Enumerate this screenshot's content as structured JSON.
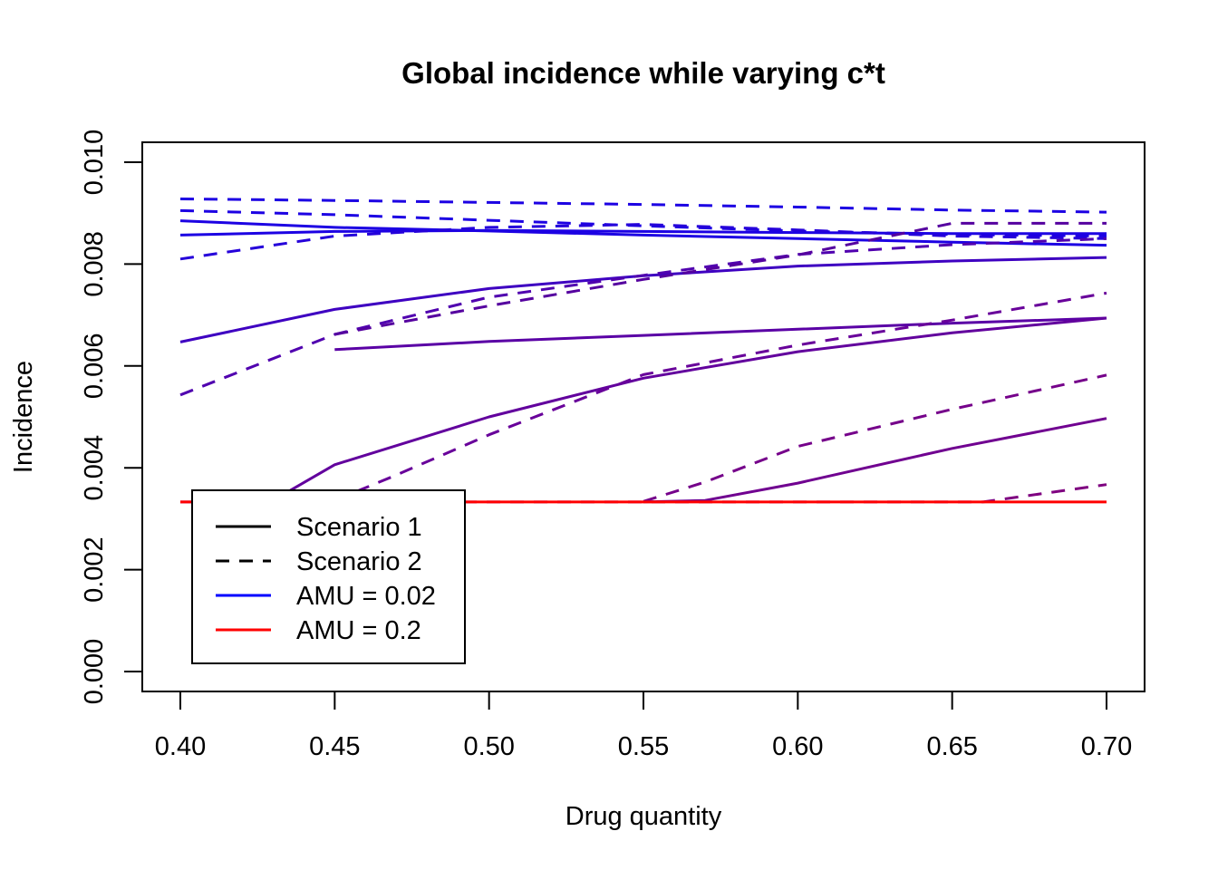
{
  "chart_data": {
    "type": "line",
    "title": "Global incidence while varying c*t",
    "xlabel": "Drug quantity",
    "ylabel": "Incidence",
    "xlim": [
      0.4,
      0.7
    ],
    "ylim": [
      0.0,
      0.01
    ],
    "x_ticks": [
      "0.40",
      "0.45",
      "0.50",
      "0.55",
      "0.60",
      "0.65",
      "0.70"
    ],
    "y_ticks": [
      "0.000",
      "0.002",
      "0.004",
      "0.006",
      "0.008",
      "0.010"
    ],
    "grid": false,
    "legend": {
      "placement": "bottom-left",
      "entries": [
        {
          "label": "Scenario 1",
          "color": "#000000",
          "dash": false
        },
        {
          "label": "Scenario 2",
          "color": "#000000",
          "dash": true
        },
        {
          "label": "AMU = 0.02",
          "color": "#0000ff",
          "dash": false
        },
        {
          "label": "AMU = 0.2",
          "color": "#ff0000",
          "dash": false
        }
      ]
    },
    "series": [
      {
        "color": "#1c00e3",
        "dash": false,
        "x": [
          0.4,
          0.45,
          0.5,
          0.55,
          0.6,
          0.65,
          0.7
        ],
        "y": [
          0.00885,
          0.00872,
          0.00865,
          0.00857,
          0.0085,
          0.00843,
          0.00837
        ]
      },
      {
        "color": "#1c00e3",
        "dash": false,
        "x": [
          0.4,
          0.45,
          0.5,
          0.55,
          0.6,
          0.65,
          0.7
        ],
        "y": [
          0.00857,
          0.00864,
          0.00866,
          0.00864,
          0.00862,
          0.0086,
          0.0086
        ]
      },
      {
        "color": "#1c00e3",
        "dash": true,
        "x": [
          0.4,
          0.45,
          0.5,
          0.55,
          0.6,
          0.65,
          0.7
        ],
        "y": [
          0.00928,
          0.00925,
          0.00921,
          0.00917,
          0.00912,
          0.00906,
          0.00902
        ]
      },
      {
        "color": "#1c00e3",
        "dash": true,
        "x": [
          0.4,
          0.45,
          0.5,
          0.55,
          0.6,
          0.65,
          0.7
        ],
        "y": [
          0.00905,
          0.00897,
          0.00886,
          0.00875,
          0.00865,
          0.00858,
          0.00855
        ]
      },
      {
        "color": "#2500da",
        "dash": true,
        "x": [
          0.4,
          0.45,
          0.5,
          0.55,
          0.6,
          0.65,
          0.7
        ],
        "y": [
          0.0081,
          0.00855,
          0.00872,
          0.00878,
          0.00867,
          0.00855,
          0.0085
        ]
      },
      {
        "color": "#3e00c1",
        "dash": false,
        "x": [
          0.4,
          0.45,
          0.5,
          0.55,
          0.6,
          0.65,
          0.7
        ],
        "y": [
          0.00647,
          0.00711,
          0.00752,
          0.00777,
          0.00796,
          0.00806,
          0.00813
        ]
      },
      {
        "color": "#5000af",
        "dash": true,
        "x": [
          0.4,
          0.45,
          0.5,
          0.55,
          0.6,
          0.65,
          0.7
        ],
        "y": [
          0.00543,
          0.00662,
          0.00735,
          0.00778,
          0.00819,
          0.00838,
          0.0085
        ]
      },
      {
        "color": "#55009f",
        "dash": true,
        "x": [
          0.4,
          0.45,
          0.5,
          0.55,
          0.6,
          0.65,
          0.7
        ],
        "y": [
          null,
          0.00662,
          0.00718,
          0.0077,
          0.00818,
          0.0088,
          0.0088
        ]
      },
      {
        "color": "#5a00a5",
        "dash": false,
        "x": [
          0.4,
          0.45,
          0.5,
          0.55,
          0.6,
          0.65,
          0.7
        ],
        "y": [
          null,
          0.00632,
          0.00648,
          0.0066,
          0.00672,
          0.00684,
          0.00694
        ]
      },
      {
        "color": "#62009d",
        "dash": false,
        "x": [
          0.43,
          0.45,
          0.5,
          0.55,
          0.6,
          0.65,
          0.7
        ],
        "y": [
          0.00336,
          0.00406,
          0.005,
          0.00576,
          0.00628,
          0.00665,
          0.00694
        ]
      },
      {
        "color": "#68009a",
        "dash": true,
        "x": [
          0.45,
          0.47,
          0.5,
          0.55,
          0.6,
          0.65,
          0.7
        ],
        "y": [
          0.00336,
          0.00386,
          0.00465,
          0.00583,
          0.00641,
          0.0069,
          0.00743
        ]
      },
      {
        "color": "#700090",
        "dash": false,
        "x": [
          0.55,
          0.57,
          0.6,
          0.65,
          0.7
        ],
        "y": [
          0.00333,
          0.00336,
          0.0037,
          0.00438,
          0.00497
        ]
      },
      {
        "color": "#75008a",
        "dash": true,
        "x": [
          0.55,
          0.57,
          0.6,
          0.65,
          0.7
        ],
        "y": [
          0.00334,
          0.00372,
          0.00442,
          0.00515,
          0.00582
        ]
      },
      {
        "color": "#7f0080",
        "dash": true,
        "x": [
          0.4,
          0.55,
          0.66,
          0.7
        ],
        "y": [
          0.00333,
          0.00333,
          0.00333,
          0.00367
        ]
      },
      {
        "color": "#ff0000",
        "dash": false,
        "x": [
          0.4,
          0.45,
          0.5,
          0.55,
          0.6,
          0.65,
          0.7
        ],
        "y": [
          0.00333,
          0.00333,
          0.00333,
          0.00333,
          0.00333,
          0.00333,
          0.00333
        ]
      }
    ]
  }
}
